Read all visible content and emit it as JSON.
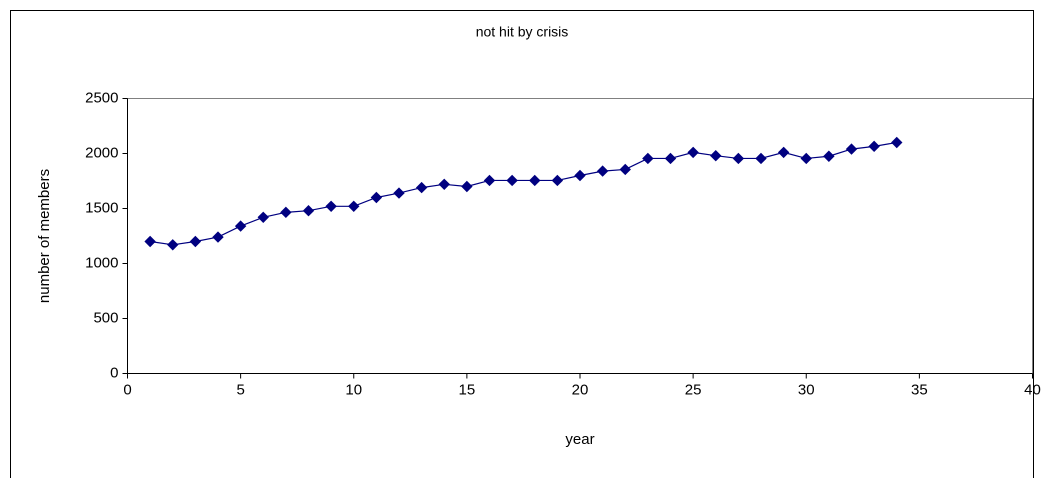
{
  "chart_data": {
    "type": "line",
    "title": "not hit by crisis",
    "xlabel": "year",
    "ylabel": "number of members",
    "x": [
      1,
      2,
      3,
      4,
      5,
      6,
      7,
      8,
      9,
      10,
      11,
      12,
      13,
      14,
      15,
      16,
      17,
      18,
      19,
      20,
      21,
      22,
      23,
      24,
      25,
      26,
      27,
      28,
      29,
      30,
      31,
      32,
      33,
      34
    ],
    "values": [
      1200,
      1170,
      1200,
      1240,
      1340,
      1420,
      1465,
      1480,
      1520,
      1520,
      1600,
      1640,
      1690,
      1720,
      1700,
      1755,
      1755,
      1755,
      1755,
      1800,
      1840,
      1855,
      1955,
      1955,
      2010,
      1980,
      1955,
      1955,
      2010,
      1955,
      1975,
      2040,
      2065,
      2100
    ],
    "color": "#000080",
    "xlim": [
      0,
      40
    ],
    "xticks": [
      0,
      5,
      10,
      15,
      20,
      25,
      30,
      35,
      40
    ],
    "ylim": [
      0,
      2500
    ],
    "yticks": [
      0,
      500,
      1000,
      1500,
      2000,
      2500
    ]
  }
}
